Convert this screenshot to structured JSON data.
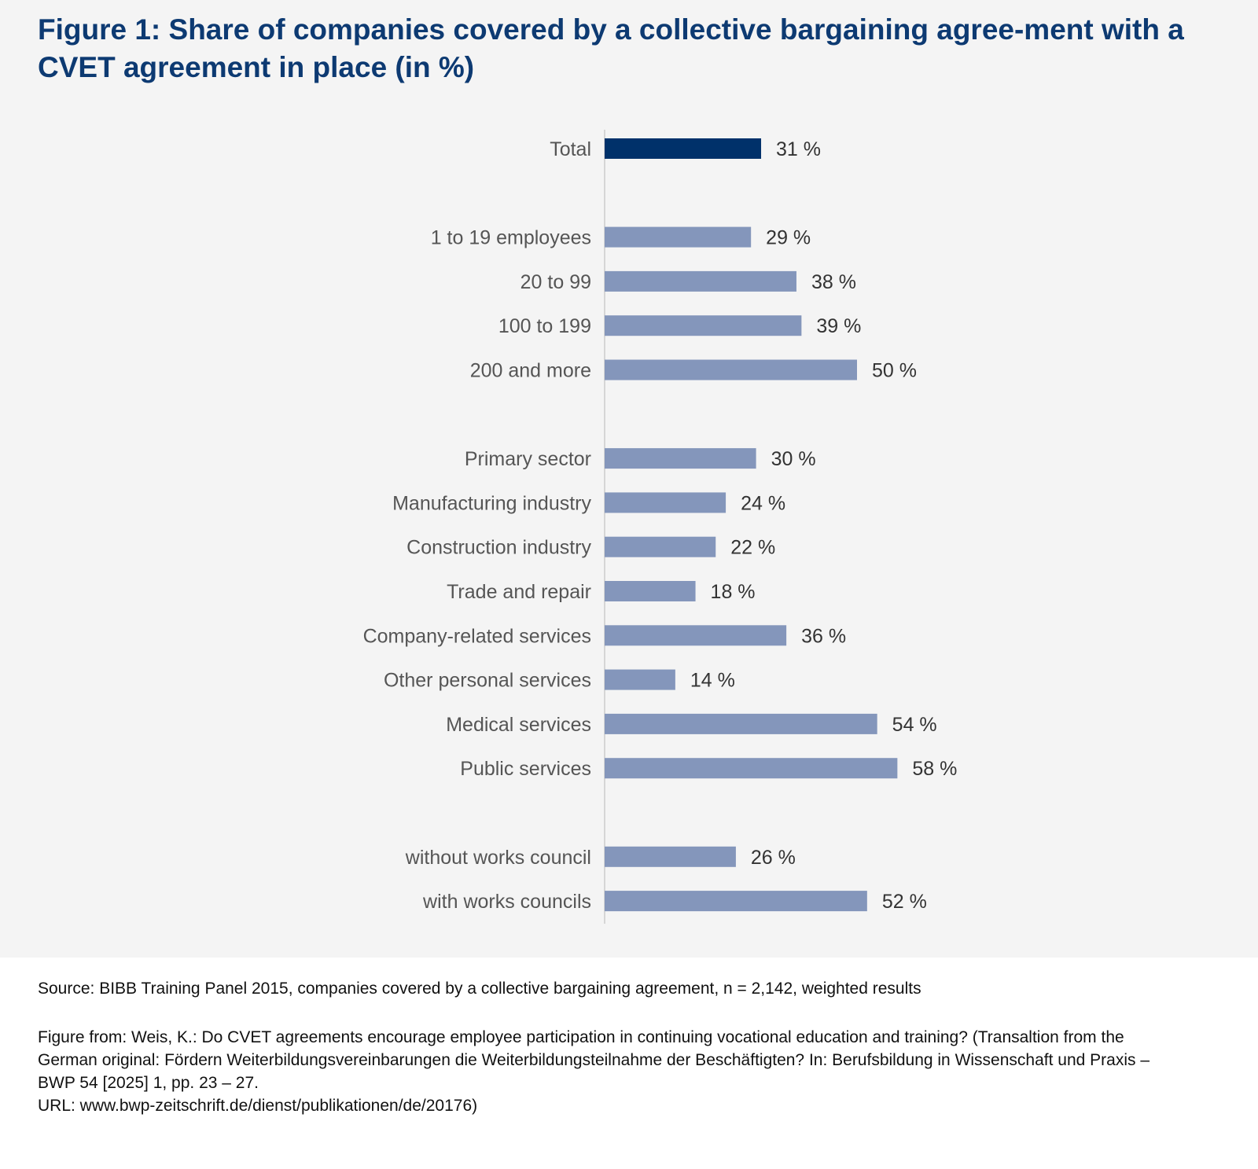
{
  "title": "Figure 1: Share of companies covered by a collective bargaining agree-ment with a CVET agreement in place (in %)",
  "chart_data": {
    "type": "bar",
    "orientation": "horizontal",
    "title": "Figure 1: Share of companies covered by a collective bargaining agreement with a CVET agreement in place (in %)",
    "unit": "%",
    "xlim": [
      0,
      100
    ],
    "grid": false,
    "groups": [
      {
        "categories": [
          "Total"
        ],
        "values": [
          31
        ],
        "color": "#00316a"
      },
      {
        "categories": [
          "1 to 19 employees",
          "20 to 99",
          "100 to 199",
          "200 and more"
        ],
        "values": [
          29,
          38,
          39,
          50
        ],
        "color": "#8496bb"
      },
      {
        "categories": [
          "Primary sector",
          "Manufacturing industry",
          "Construction industry",
          "Trade and repair",
          "Company-related services",
          "Other personal services",
          "Medical services",
          "Public services"
        ],
        "values": [
          30,
          24,
          22,
          18,
          36,
          14,
          54,
          58
        ],
        "color": "#8496bb"
      },
      {
        "categories": [
          "without works council",
          "with works councils"
        ],
        "values": [
          26,
          52
        ],
        "color": "#8496bb"
      }
    ]
  },
  "footer": {
    "source": "Source: BIBB Training Panel 2015, companies covered by a collective bargaining agreement, n = 2,142, weighted results",
    "citation": "Figure from: Weis, K.: Do CVET agreements encourage employee participation in continuing vocational education and training? (Transaltion from the German original: Fördern Weiterbildungsvereinbarungen die Weiterbildungsteilnahme der Beschäftigten? In: Berufsbildung in Wissenschaft und Praxis – BWP 54 [2025] 1, pp. 23 – 27.",
    "url": "URL: www.bwp-zeitschrift.de/dienst/publikationen/de/20176)"
  }
}
